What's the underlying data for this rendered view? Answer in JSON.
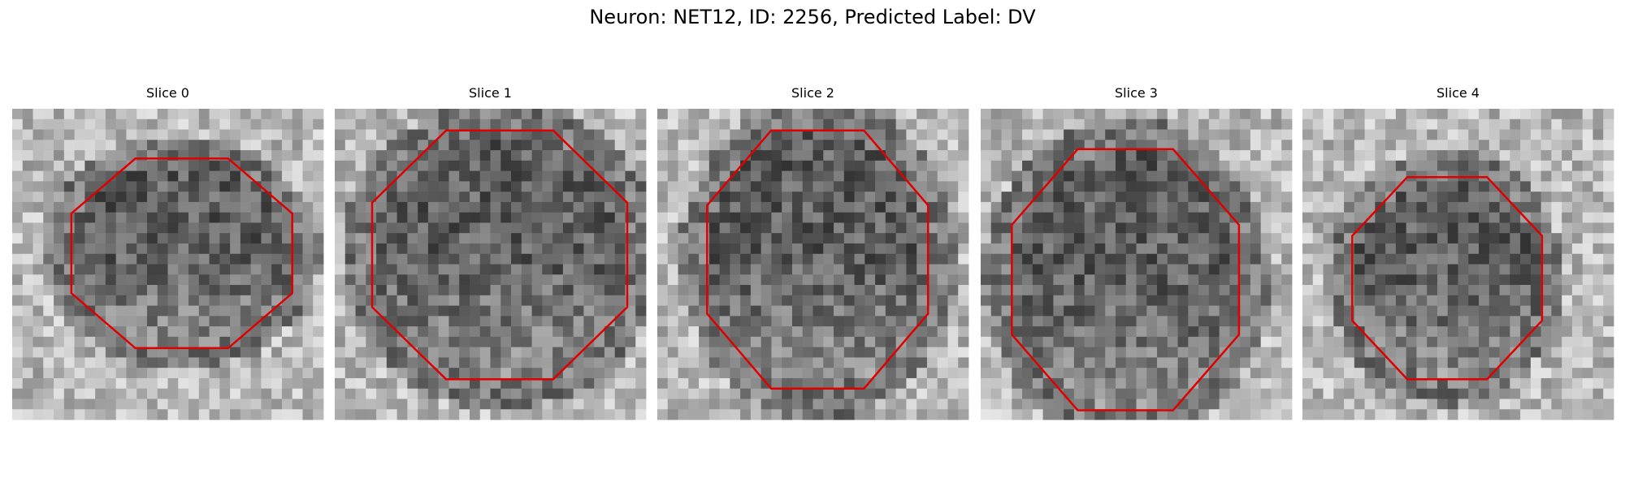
{
  "title": "Neuron: NET12, ID: 2256, Predicted Label: DV",
  "panels": [
    {
      "title": "Slice 0"
    },
    {
      "title": "Slice 1"
    },
    {
      "title": "Slice 2"
    },
    {
      "title": "Slice 3"
    },
    {
      "title": "Slice 4"
    }
  ]
}
